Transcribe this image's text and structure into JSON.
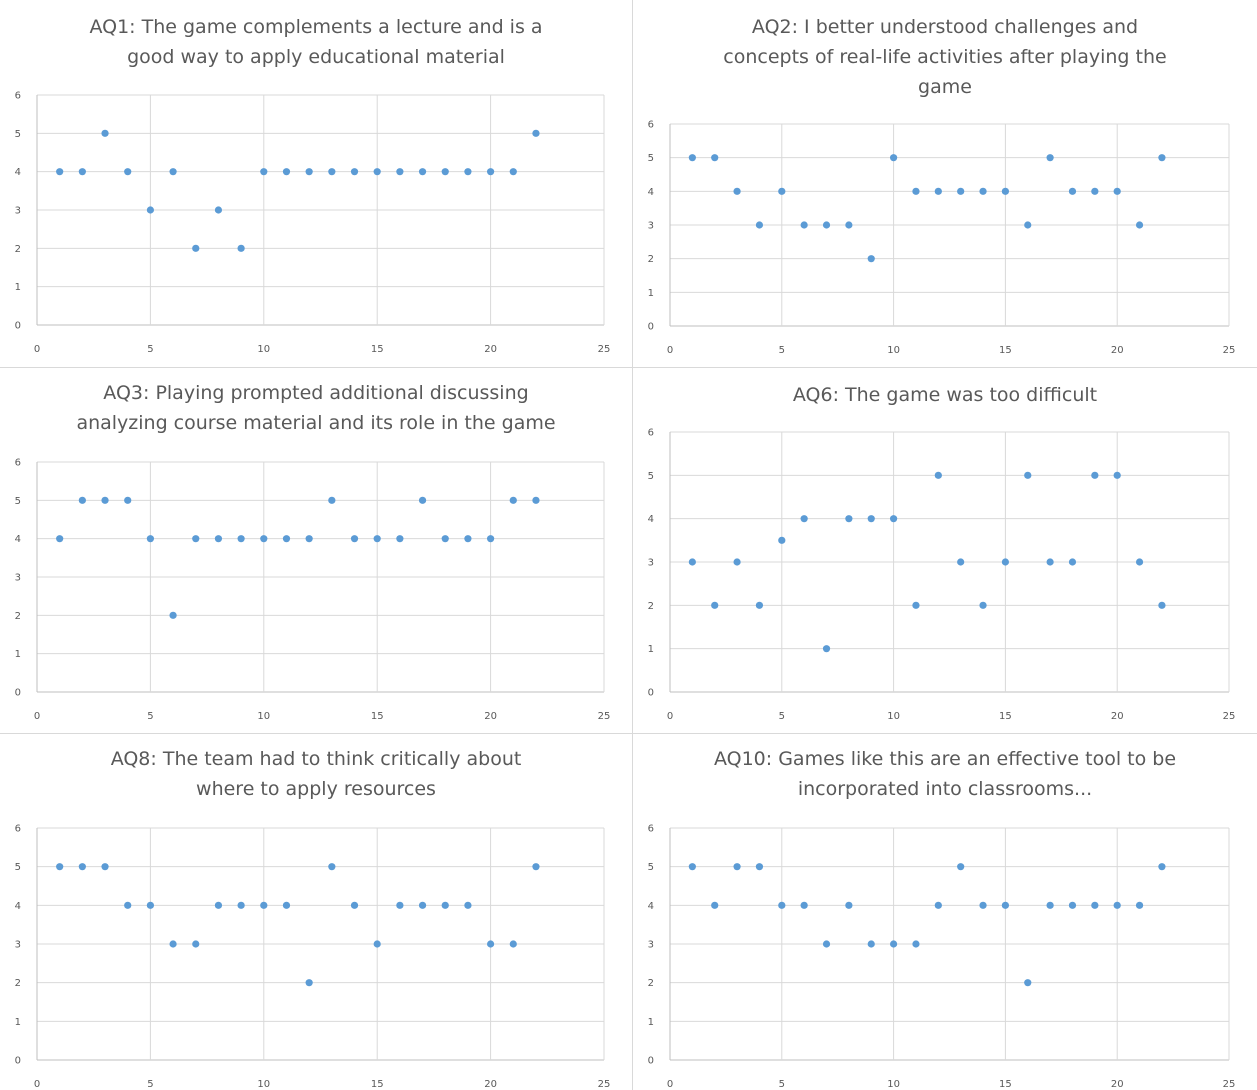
{
  "chart_data": [
    {
      "type": "scatter",
      "title": "AQ1: The game complements a lecture and is a good way to apply educational material",
      "title_lines": [
        "AQ1: The game complements a lecture and is a",
        "good way to apply educational material"
      ],
      "x": [
        1,
        2,
        3,
        4,
        5,
        6,
        7,
        8,
        9,
        10,
        11,
        12,
        13,
        14,
        15,
        16,
        17,
        18,
        19,
        20,
        21,
        22
      ],
      "y": [
        4,
        4,
        5,
        4,
        3,
        4,
        2,
        3,
        2,
        4,
        4,
        4,
        4,
        4,
        4,
        4,
        4,
        4,
        4,
        4,
        4,
        5
      ],
      "xlim": [
        0,
        25
      ],
      "ylim": [
        0,
        6
      ],
      "xticks": [
        "0",
        "5",
        "10",
        "15",
        "20",
        "25"
      ],
      "yticks": [
        "0",
        "1",
        "2",
        "3",
        "4",
        "5",
        "6"
      ],
      "grid": true,
      "marker_color": "#5b9bd5"
    },
    {
      "type": "scatter",
      "title": "AQ2: I better understood challenges and concepts of real-life activities after playing the game",
      "title_lines": [
        "AQ2: I better understood challenges and",
        "concepts of real-life activities after playing the",
        "game"
      ],
      "x": [
        1,
        2,
        3,
        4,
        5,
        6,
        7,
        8,
        9,
        10,
        11,
        12,
        13,
        14,
        15,
        16,
        17,
        18,
        19,
        20,
        21,
        22
      ],
      "y": [
        5,
        5,
        4,
        3,
        4,
        3,
        3,
        3,
        2,
        5,
        4,
        4,
        4,
        4,
        4,
        3,
        5,
        4,
        4,
        4,
        3,
        5
      ],
      "xlim": [
        0,
        25
      ],
      "ylim": [
        0,
        6
      ],
      "xticks": [
        "0",
        "5",
        "10",
        "15",
        "20",
        "25"
      ],
      "yticks": [
        "0",
        "1",
        "2",
        "3",
        "4",
        "5",
        "6"
      ],
      "grid": true,
      "marker_color": "#5b9bd5"
    },
    {
      "type": "scatter",
      "title": "AQ3: Playing prompted additional discussing analyzing course material and its role in the game",
      "title_lines": [
        "AQ3: Playing prompted additional discussing",
        "analyzing course material and its role in the game"
      ],
      "x": [
        1,
        2,
        3,
        4,
        5,
        6,
        7,
        8,
        9,
        10,
        11,
        12,
        13,
        14,
        15,
        16,
        17,
        18,
        19,
        20,
        21,
        22
      ],
      "y": [
        4,
        5,
        5,
        5,
        4,
        2,
        4,
        4,
        4,
        4,
        4,
        4,
        5,
        4,
        4,
        4,
        5,
        4,
        4,
        4,
        5,
        5
      ],
      "xlim": [
        0,
        25
      ],
      "ylim": [
        0,
        6
      ],
      "xticks": [
        "0",
        "5",
        "10",
        "15",
        "20",
        "25"
      ],
      "yticks": [
        "0",
        "1",
        "2",
        "3",
        "4",
        "5",
        "6"
      ],
      "grid": true,
      "marker_color": "#5b9bd5"
    },
    {
      "type": "scatter",
      "title": "AQ6: The game was too difficult",
      "title_lines": [
        "AQ6: The game was too difficult"
      ],
      "x": [
        1,
        2,
        3,
        4,
        5,
        6,
        7,
        8,
        9,
        10,
        11,
        12,
        13,
        14,
        15,
        16,
        17,
        18,
        19,
        20,
        21,
        22
      ],
      "y": [
        3,
        2,
        3,
        2,
        3.5,
        4,
        1,
        4,
        4,
        4,
        2,
        5,
        3,
        2,
        3,
        5,
        3,
        3,
        5,
        5,
        3,
        2
      ],
      "xlim": [
        0,
        25
      ],
      "ylim": [
        0,
        6
      ],
      "xticks": [
        "0",
        "5",
        "10",
        "15",
        "20",
        "25"
      ],
      "yticks": [
        "0",
        "1",
        "2",
        "3",
        "4",
        "5",
        "6"
      ],
      "grid": true,
      "marker_color": "#5b9bd5"
    },
    {
      "type": "scatter",
      "title": "AQ8: The team had to think critically about where to apply resources",
      "title_lines": [
        "AQ8: The team had to think critically about",
        "where to apply resources"
      ],
      "x": [
        1,
        2,
        3,
        4,
        5,
        6,
        7,
        8,
        9,
        10,
        11,
        12,
        13,
        14,
        15,
        16,
        17,
        18,
        19,
        20,
        21,
        22
      ],
      "y": [
        5,
        5,
        5,
        4,
        4,
        3,
        3,
        4,
        4,
        4,
        4,
        2,
        5,
        4,
        3,
        4,
        4,
        4,
        4,
        3,
        3,
        5
      ],
      "xlim": [
        0,
        25
      ],
      "ylim": [
        0,
        6
      ],
      "xticks": [
        "0",
        "5",
        "10",
        "15",
        "20",
        "25"
      ],
      "yticks": [
        "0",
        "1",
        "2",
        "3",
        "4",
        "5",
        "6"
      ],
      "grid": true,
      "marker_color": "#5b9bd5"
    },
    {
      "type": "scatter",
      "title": "AQ10: Games like this are an effective tool to be incorporated into classrooms...",
      "title_lines": [
        "AQ10: Games like this are an effective tool to be",
        "incorporated into classrooms..."
      ],
      "x": [
        1,
        2,
        3,
        4,
        5,
        6,
        7,
        8,
        9,
        10,
        11,
        12,
        13,
        14,
        15,
        16,
        17,
        18,
        19,
        20,
        21,
        22
      ],
      "y": [
        5,
        4,
        5,
        5,
        4,
        4,
        3,
        4,
        3,
        3,
        3,
        4,
        5,
        4,
        4,
        2,
        4,
        4,
        4,
        4,
        4,
        5
      ],
      "xlim": [
        0,
        25
      ],
      "ylim": [
        0,
        6
      ],
      "xticks": [
        "0",
        "5",
        "10",
        "15",
        "20",
        "25"
      ],
      "yticks": [
        "0",
        "1",
        "2",
        "3",
        "4",
        "5",
        "6"
      ],
      "grid": true,
      "marker_color": "#5b9bd5"
    }
  ]
}
